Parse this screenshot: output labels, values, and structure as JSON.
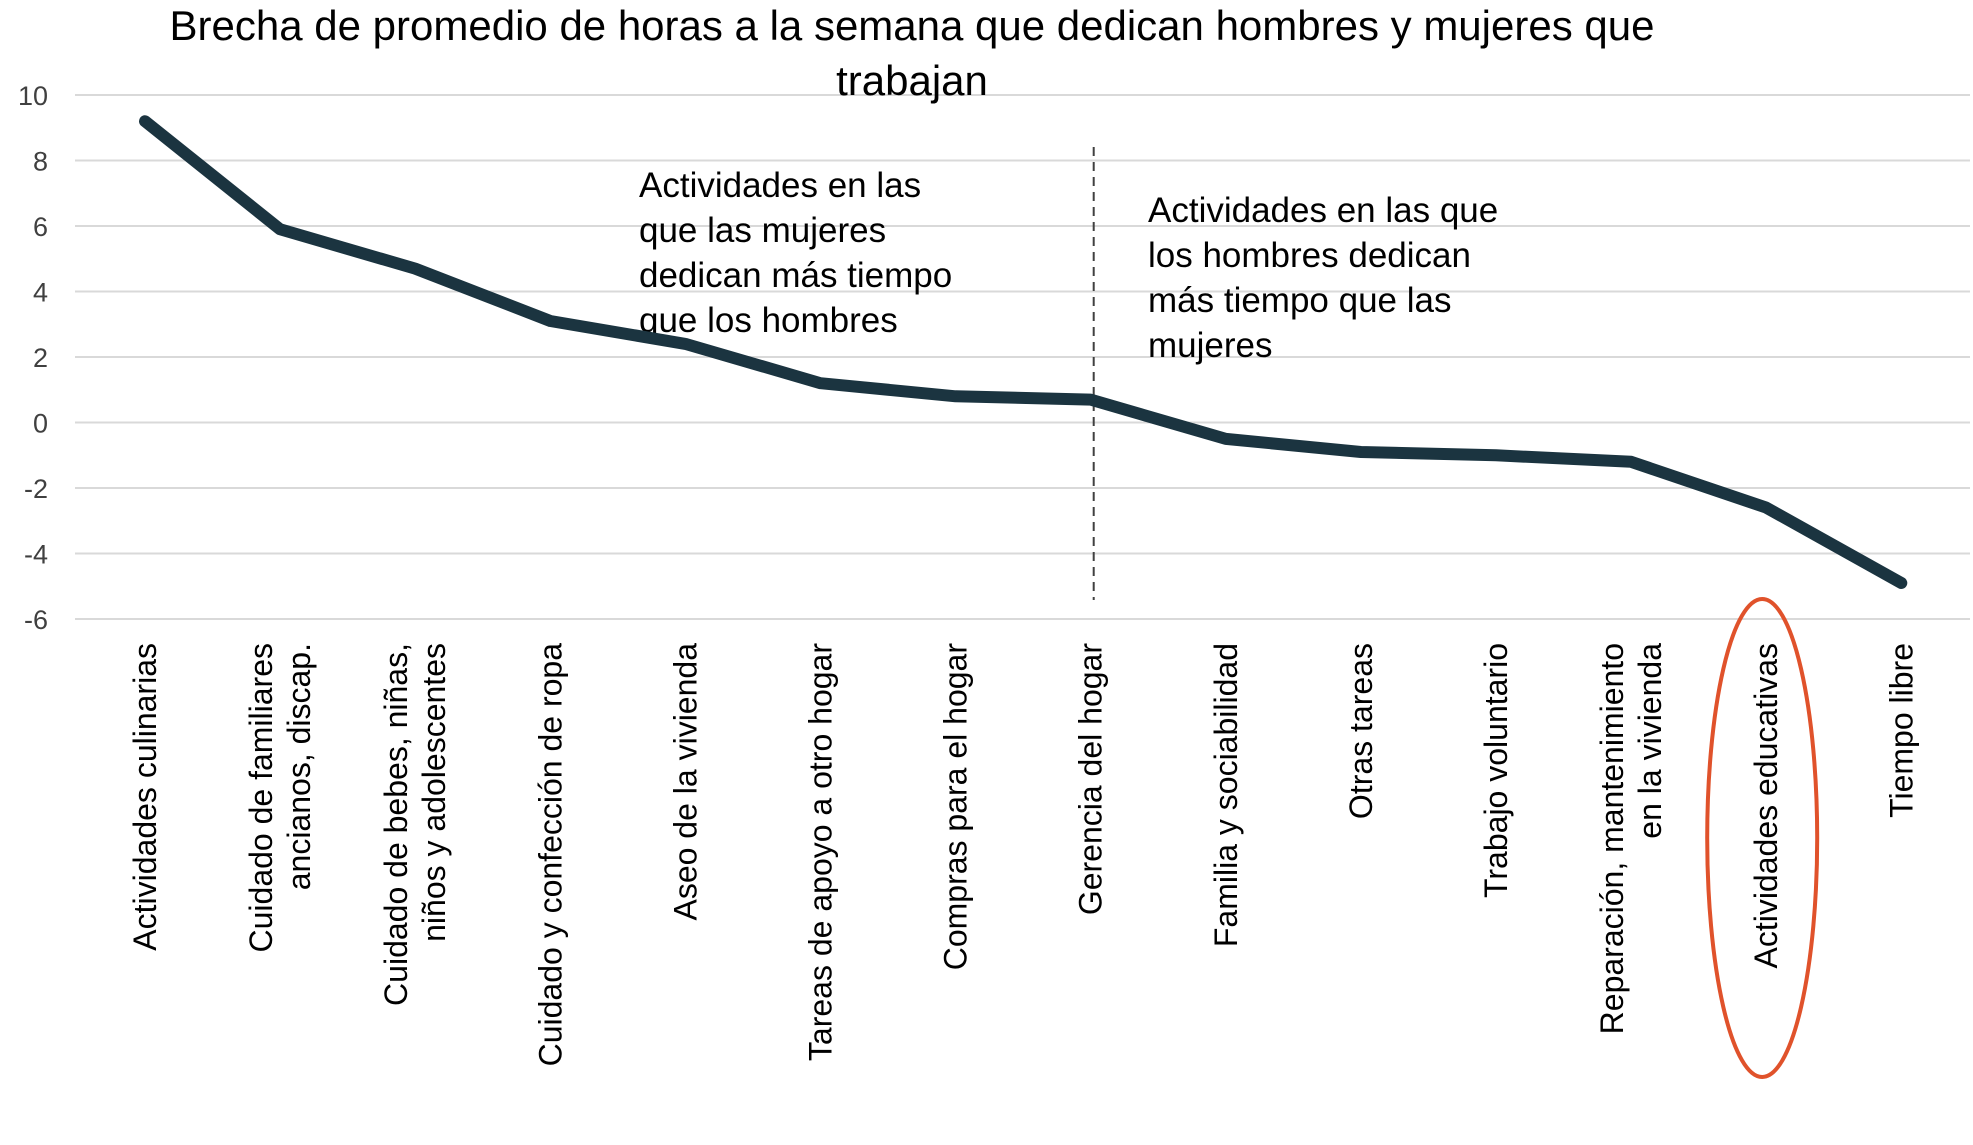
{
  "chart_data": {
    "type": "line",
    "title": [
      "Brecha de promedio de horas a la semana que dedican hombres y mujeres que",
      "trabajan"
    ],
    "xlabel": "",
    "ylabel": "",
    "ylim": [
      -6,
      10
    ],
    "yticks": [
      "10",
      "8",
      "6",
      "4",
      "2",
      "0",
      "-2",
      "-4",
      "-6"
    ],
    "grid": true,
    "categories": [
      [
        "Actividades culinarias"
      ],
      [
        "Cuidado de familiares",
        "ancianos, discap."
      ],
      [
        "Cuidado de bebes, niñas,",
        "niños y adolescentes"
      ],
      [
        "Cuidado y confección de ropa"
      ],
      [
        "Aseo de la vivienda"
      ],
      [
        "Tareas de apoyo a otro hogar"
      ],
      [
        "Compras para el hogar"
      ],
      [
        "Gerencia del hogar"
      ],
      [
        "Familia y sociabilidad"
      ],
      [
        "Otras tareas"
      ],
      [
        "Trabajo voluntario"
      ],
      [
        "Reparación,  mantenimiento",
        "en la vivienda"
      ],
      [
        "Actividades educativas"
      ],
      [
        "Tiempo libre"
      ]
    ],
    "values": [
      9.2,
      5.9,
      4.7,
      3.1,
      2.4,
      1.2,
      0.8,
      0.7,
      -0.5,
      -0.9,
      -1.0,
      -1.2,
      -2.6,
      -4.9
    ],
    "line_color": "#1b3440",
    "divider_after_category": 7,
    "highlight_category": 12,
    "highlight_color": "#e0522b",
    "annotations": [
      {
        "lines": [
          "Actividades en las",
          "que las mujeres",
          "dedican más tiempo",
          "que los hombres"
        ]
      },
      {
        "lines": [
          "Actividades en las que",
          "los hombres dedican",
          "más tiempo que las",
          "mujeres"
        ]
      }
    ]
  }
}
